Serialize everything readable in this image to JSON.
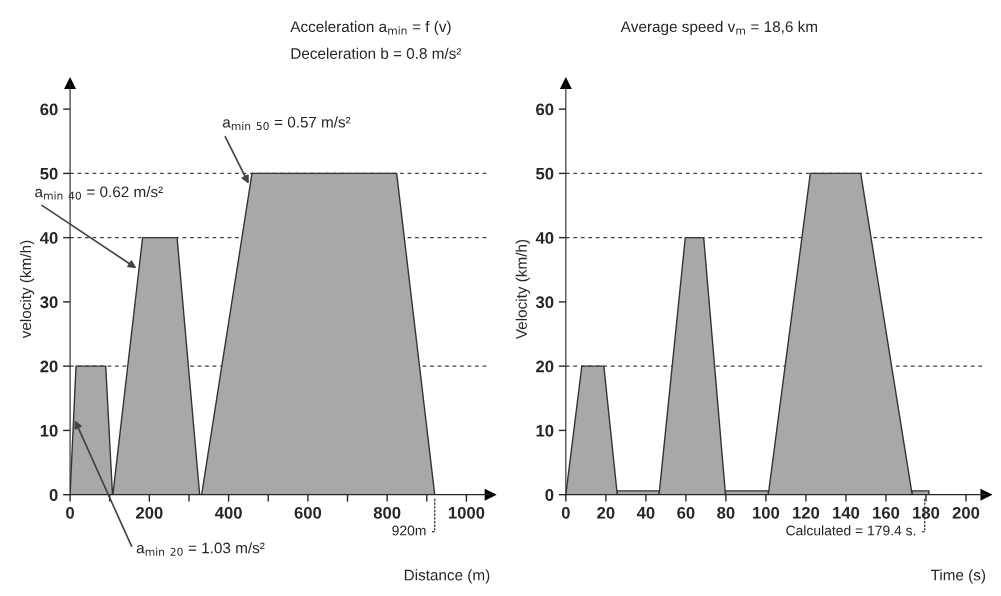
{
  "chart_data": [
    {
      "type": "area",
      "xlabel": "Distance (m)",
      "ylabel": "velocity (km/h)",
      "xlim": [
        0,
        1060
      ],
      "ylim": [
        0,
        64
      ],
      "xticks": [
        0,
        {
          "value": 100,
          "label": null
        },
        200,
        {
          "value": 300,
          "label": null
        },
        400,
        {
          "value": 500,
          "label": null
        },
        600,
        {
          "value": 700,
          "label": null
        },
        800,
        {
          "value": 900,
          "label": null
        },
        1000
      ],
      "yticks": [
        0,
        10,
        20,
        30,
        40,
        50,
        60
      ],
      "series": [
        {
          "color": "#a8a8a8",
          "x": [
            0,
            15,
            90,
            107,
            108,
            183,
            270,
            327,
            332,
            459,
            824,
            920
          ],
          "values": [
            0,
            20,
            20,
            0,
            0,
            40,
            40,
            0,
            0,
            50,
            50,
            0
          ]
        }
      ],
      "ref_lines": [
        {
          "axis": "y",
          "value": 20,
          "line_style": "dashed"
        },
        {
          "axis": "y",
          "value": 40,
          "line_style": "dashed"
        },
        {
          "axis": "y",
          "value": 50,
          "line_style": "dashed"
        }
      ],
      "annotations": [
        "Acceleration a$_{min}$ = f (v)",
        "Deceleration b = 0.8 m/s²",
        {
          "text": "a$_{min 20}$ = 1.03 m/s²",
          "x": 9,
          "y": 12
        },
        {
          "text": "a$_{min 40}$ = 0.62 m/s²",
          "x": 173,
          "y": 35
        },
        {
          "text": "a$_{min 50}$ = 0.57 m/s²",
          "x": 454,
          "y": 48
        },
        {
          "text": "920m",
          "x": 920,
          "y": 0
        }
      ],
      "grid": false
    },
    {
      "type": "area",
      "xlabel": "Time (s)",
      "ylabel": "Velocity (km/h)",
      "xlim": [
        0,
        210
      ],
      "ylim": [
        0,
        64
      ],
      "xticks": [
        0,
        20,
        40,
        60,
        80,
        100,
        120,
        140,
        160,
        180,
        200
      ],
      "yticks": [
        0,
        10,
        20,
        30,
        40,
        50,
        60
      ],
      "series": [
        {
          "color": "#a8a8a8",
          "x": [
            0,
            8,
            19,
            25.7,
            25.7,
            46.6,
            46.6,
            59.7,
            68.9,
            79.8,
            79.8,
            101.2,
            101.2,
            122.2,
            147.4,
            173.1,
            173.1,
            181.5,
            181.5
          ],
          "values": [
            0,
            20,
            20,
            0,
            0.6,
            0.6,
            0,
            40,
            40,
            0,
            0.6,
            0.6,
            0,
            50,
            50,
            0,
            0.6,
            0.6,
            0
          ]
        }
      ],
      "ref_lines": [
        {
          "axis": "y",
          "value": 20,
          "line_style": "dashed"
        },
        {
          "axis": "y",
          "value": 40,
          "line_style": "dashed"
        },
        {
          "axis": "y",
          "value": 50,
          "line_style": "dashed"
        }
      ],
      "annotations": [
        "Average speed v$_{m}$ = 18,6 km",
        {
          "text": "Calculated = 179.4 s.",
          "x": 179.4,
          "y": 0
        }
      ],
      "grid": false
    }
  ]
}
